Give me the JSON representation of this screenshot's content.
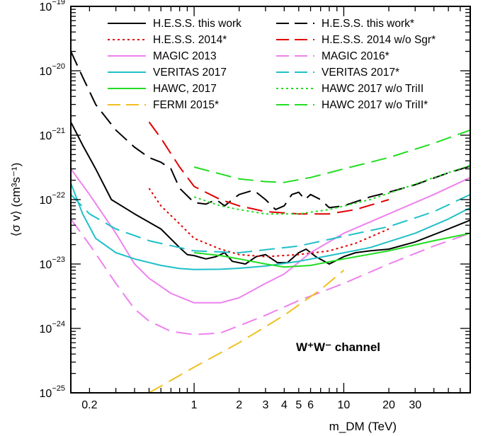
{
  "chart_data": {
    "type": "line",
    "xlabel": "m_DM (TeV)",
    "ylabel": "⟨σ v⟩ (cm³s⁻¹)",
    "xscale": "log",
    "yscale": "log",
    "xlim": [
      0.15,
      70
    ],
    "ylim": [
      1e-25,
      1e-19
    ],
    "grid": false,
    "legend_position": "top",
    "annotation": "W⁺W⁻ channel",
    "x_tick_labels": [
      {
        "value": 0.2,
        "label": "0.2"
      },
      {
        "value": 1,
        "label": "1"
      },
      {
        "value": 2,
        "label": "2"
      },
      {
        "value": 3,
        "label": "3"
      },
      {
        "value": 4,
        "label": "4"
      },
      {
        "value": 5,
        "label": "5"
      },
      {
        "value": 6,
        "label": "6"
      },
      {
        "value": 10,
        "label": "10"
      },
      {
        "value": 20,
        "label": "20"
      },
      {
        "value": 30,
        "label": "30"
      }
    ],
    "y_tick_labels": [
      {
        "exp": -25,
        "base": "10",
        "sup": "−25"
      },
      {
        "exp": -24,
        "base": "10",
        "sup": "−24"
      },
      {
        "exp": -23,
        "base": "10",
        "sup": "−23"
      },
      {
        "exp": -22,
        "base": "10",
        "sup": "−22"
      },
      {
        "exp": -21,
        "base": "10",
        "sup": "−21"
      },
      {
        "exp": -20,
        "base": "10",
        "sup": "−20"
      },
      {
        "exp": -19,
        "base": "10",
        "sup": "−19"
      }
    ],
    "series": [
      {
        "name": "H.E.S.S. this work",
        "color": "#000000",
        "dash": "solid",
        "points": [
          [
            0.15,
            1.6e-21
          ],
          [
            0.18,
            7e-22
          ],
          [
            0.22,
            3e-22
          ],
          [
            0.28,
            1e-22
          ],
          [
            0.4,
            6e-23
          ],
          [
            0.6,
            3.5e-23
          ],
          [
            0.8,
            1.8e-23
          ],
          [
            0.9,
            1.4e-23
          ],
          [
            1.0,
            1.35e-23
          ],
          [
            1.2,
            1.2e-23
          ],
          [
            1.4,
            1.3e-23
          ],
          [
            1.6,
            1.5e-23
          ],
          [
            1.8,
            1.1e-23
          ],
          [
            2.2,
            1e-23
          ],
          [
            2.6,
            1.3e-23
          ],
          [
            3.0,
            1.4e-23
          ],
          [
            3.6,
            1.05e-23
          ],
          [
            4.2,
            1.05e-23
          ],
          [
            5.0,
            1.5e-23
          ],
          [
            5.6,
            1.7e-23
          ],
          [
            6.5,
            1.3e-23
          ],
          [
            8,
            1e-23
          ],
          [
            10,
            1.3e-23
          ],
          [
            12,
            1.5e-23
          ],
          [
            15,
            1.6e-23
          ],
          [
            20,
            1.7e-23
          ],
          [
            30,
            2.2e-23
          ],
          [
            50,
            3.5e-23
          ],
          [
            70,
            4.8e-23
          ]
        ]
      },
      {
        "name": "H.E.S.S. this work*",
        "color": "#000000",
        "dash": "long",
        "points": [
          [
            0.15,
            2e-20
          ],
          [
            0.18,
            8e-21
          ],
          [
            0.22,
            3e-21
          ],
          [
            0.3,
            1.2e-21
          ],
          [
            0.4,
            6.5e-22
          ],
          [
            0.5,
            4.5e-22
          ],
          [
            0.6,
            3.8e-22
          ],
          [
            0.7,
            3e-22
          ],
          [
            0.8,
            1.5e-22
          ],
          [
            1.0,
            9e-23
          ],
          [
            1.2,
            8.5e-23
          ],
          [
            1.4,
            1e-22
          ],
          [
            1.6,
            8e-23
          ],
          [
            1.8,
            1e-22
          ],
          [
            2.0,
            1.2e-22
          ],
          [
            2.5,
            1.4e-22
          ],
          [
            3.0,
            1e-22
          ],
          [
            3.5,
            7e-23
          ],
          [
            4.0,
            8e-23
          ],
          [
            4.5,
            1.2e-22
          ],
          [
            5.0,
            1.3e-22
          ],
          [
            5.5,
            1e-22
          ],
          [
            6.0,
            1.2e-22
          ],
          [
            7.0,
            1e-22
          ],
          [
            8.0,
            7.5e-23
          ],
          [
            10,
            8e-23
          ],
          [
            15,
            1.1e-22
          ],
          [
            20,
            1.3e-22
          ],
          [
            30,
            1.7e-22
          ],
          [
            50,
            2.6e-22
          ],
          [
            70,
            3.3e-22
          ]
        ]
      },
      {
        "name": "H.E.S.S. 2014*",
        "color": "#e00000",
        "dash": "dotted",
        "points": [
          [
            0.5,
            1.5e-22
          ],
          [
            0.6,
            8e-23
          ],
          [
            0.8,
            4.2e-23
          ],
          [
            1.0,
            2.5e-23
          ],
          [
            1.5,
            1.7e-23
          ],
          [
            2.0,
            1.4e-23
          ],
          [
            3,
            1.3e-23
          ],
          [
            5,
            1.4e-23
          ],
          [
            8,
            1.6e-23
          ],
          [
            12,
            2.1e-23
          ],
          [
            16,
            2.8e-23
          ],
          [
            20,
            3.5e-23
          ]
        ]
      },
      {
        "name": "H.E.S.S. 2014 w/o Sgr*",
        "color": "#e00000",
        "dash": "long",
        "points": [
          [
            0.5,
            1.6e-21
          ],
          [
            0.6,
            9e-22
          ],
          [
            0.8,
            3.2e-22
          ],
          [
            1.0,
            1.6e-22
          ],
          [
            1.5,
            1e-22
          ],
          [
            2.0,
            8e-23
          ],
          [
            3,
            6.5e-23
          ],
          [
            5,
            6e-23
          ],
          [
            8,
            6e-23
          ],
          [
            12,
            7e-23
          ],
          [
            20,
            1e-22
          ]
        ]
      },
      {
        "name": "MAGIC 2013",
        "color": "#ee82ee",
        "dash": "solid",
        "points": [
          [
            0.15,
            3e-22
          ],
          [
            0.2,
            1.2e-22
          ],
          [
            0.3,
            3e-23
          ],
          [
            0.4,
            1e-23
          ],
          [
            0.5,
            6e-24
          ],
          [
            0.7,
            3.5e-24
          ],
          [
            1.0,
            2.5e-24
          ],
          [
            1.5,
            2.5e-24
          ],
          [
            2.0,
            3e-24
          ],
          [
            3,
            5e-24
          ],
          [
            4,
            7e-24
          ],
          [
            6,
            1.5e-23
          ],
          [
            10,
            3e-23
          ],
          [
            20,
            6e-23
          ],
          [
            40,
            1.2e-22
          ],
          [
            70,
            2.2e-22
          ]
        ]
      },
      {
        "name": "MAGIC 2016*",
        "color": "#ee82ee",
        "dash": "long",
        "points": [
          [
            0.15,
            5e-23
          ],
          [
            0.2,
            2e-23
          ],
          [
            0.3,
            5e-24
          ],
          [
            0.4,
            2e-24
          ],
          [
            0.5,
            1.3e-24
          ],
          [
            0.7,
            9e-25
          ],
          [
            1.0,
            8e-25
          ],
          [
            1.5,
            8.5e-25
          ],
          [
            2.0,
            1.1e-24
          ],
          [
            3,
            1.6e-24
          ],
          [
            5,
            2.7e-24
          ],
          [
            10,
            5e-24
          ],
          [
            20,
            1e-23
          ],
          [
            40,
            1.9e-23
          ],
          [
            70,
            3e-23
          ]
        ]
      },
      {
        "name": "VERITAS 2017",
        "color": "#20c0c8",
        "dash": "solid",
        "points": [
          [
            0.15,
            1.8e-22
          ],
          [
            0.18,
            6e-23
          ],
          [
            0.22,
            2.5e-23
          ],
          [
            0.3,
            1.5e-23
          ],
          [
            0.4,
            1.2e-23
          ],
          [
            0.6,
            9.5e-24
          ],
          [
            0.8,
            8.5e-24
          ],
          [
            1.0,
            8.2e-24
          ],
          [
            1.5,
            8.3e-24
          ],
          [
            2.0,
            8.6e-24
          ],
          [
            3,
            9.3e-24
          ],
          [
            5,
            1.1e-23
          ],
          [
            8,
            1.35e-23
          ],
          [
            15,
            1.8e-23
          ],
          [
            30,
            3e-23
          ],
          [
            50,
            5e-23
          ],
          [
            70,
            7.5e-23
          ]
        ]
      },
      {
        "name": "VERITAS 2017*",
        "color": "#20c0c8",
        "dash": "long",
        "points": [
          [
            0.15,
            1.2e-22
          ],
          [
            0.2,
            6e-23
          ],
          [
            0.3,
            3.5e-23
          ],
          [
            0.5,
            2.3e-23
          ],
          [
            0.8,
            1.8e-23
          ],
          [
            1.0,
            1.6e-23
          ],
          [
            2.0,
            1.5e-23
          ],
          [
            5,
            1.9e-23
          ],
          [
            10,
            2.7e-23
          ],
          [
            20,
            3.8e-23
          ],
          [
            40,
            6.5e-23
          ],
          [
            70,
            1.2e-22
          ]
        ]
      },
      {
        "name": "HAWC, 2017",
        "color": "#22dd22",
        "dash": "solid",
        "points": [
          [
            1.0,
            1.5e-23
          ],
          [
            1.5,
            1.35e-23
          ],
          [
            2.0,
            1.2e-23
          ],
          [
            3,
            1e-23
          ],
          [
            4,
            9e-24
          ],
          [
            6,
            9.5e-24
          ],
          [
            10,
            1.2e-23
          ],
          [
            20,
            1.6e-23
          ],
          [
            40,
            2.3e-23
          ],
          [
            70,
            3e-23
          ]
        ]
      },
      {
        "name": "HAWC 2017 w/o TriII",
        "color": "#22dd22",
        "dash": "dotted",
        "points": [
          [
            1.0,
            1.1e-22
          ],
          [
            1.5,
            8e-23
          ],
          [
            2.0,
            7e-23
          ],
          [
            3,
            6e-23
          ],
          [
            5,
            6e-23
          ],
          [
            8,
            7e-23
          ],
          [
            15,
            1e-22
          ],
          [
            25,
            1.5e-22
          ],
          [
            40,
            2.2e-22
          ],
          [
            70,
            3.4e-22
          ]
        ]
      },
      {
        "name": "HAWC 2017 w/o TriII*",
        "color": "#22dd22",
        "dash": "long",
        "points": [
          [
            1.0,
            3.2e-22
          ],
          [
            1.5,
            2.5e-22
          ],
          [
            2.0,
            2.1e-22
          ],
          [
            3,
            1.9e-22
          ],
          [
            4,
            1.85e-22
          ],
          [
            6,
            2.2e-22
          ],
          [
            10,
            3e-22
          ],
          [
            20,
            4.5e-22
          ],
          [
            40,
            7.5e-22
          ],
          [
            70,
            1.2e-21
          ]
        ]
      },
      {
        "name": "FERMI 2015*",
        "color": "#f0c020",
        "dash": "long",
        "points": [
          [
            0.5,
            1e-25
          ],
          [
            1.0,
            2.5e-25
          ],
          [
            2.0,
            6e-25
          ],
          [
            4.0,
            1.6e-24
          ],
          [
            7.0,
            4e-24
          ],
          [
            10,
            8e-24
          ]
        ]
      }
    ]
  }
}
